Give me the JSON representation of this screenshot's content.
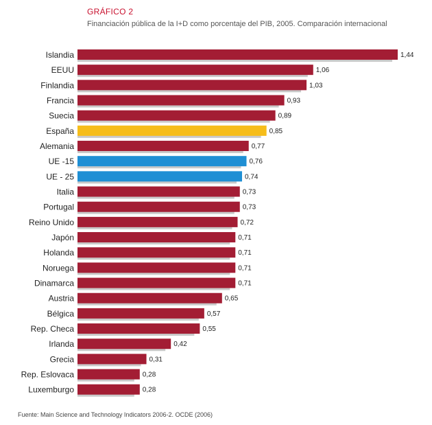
{
  "heading": {
    "label": "GRÁFICO 2",
    "title": "Financiación pública de la I+D como porcentaje del PIB, 2005. Comparación internacional"
  },
  "source": "Fuente: Main Science and Technology Indicators 2006-2. OCDE (2006)",
  "colors": {
    "default": "#a31d34",
    "spain": "#f6bd1a",
    "eu": "#1f8fd4",
    "shadow": "#c9c9c9"
  },
  "chart_data": {
    "type": "bar",
    "orientation": "horizontal",
    "title": "Financiación pública de la I+D como porcentaje del PIB, 2005. Comparación internacional",
    "categories": [
      "Islandia",
      "EEUU",
      "Finlandia",
      "Francia",
      "Suecia",
      "España",
      "Alemania",
      "UE -15",
      "UE - 25",
      "Italia",
      "Portugal",
      "Reino Unido",
      "Japón",
      "Holanda",
      "Noruega",
      "Dinamarca",
      "Austria",
      "Bélgica",
      "Rep. Checa",
      "Irlanda",
      "Grecia",
      "Rep. Eslovaca",
      "Luxemburgo"
    ],
    "values": [
      1.44,
      1.06,
      1.03,
      0.93,
      0.89,
      0.85,
      0.77,
      0.76,
      0.74,
      0.73,
      0.73,
      0.72,
      0.71,
      0.71,
      0.71,
      0.71,
      0.65,
      0.57,
      0.55,
      0.42,
      0.31,
      0.28,
      0.28
    ],
    "value_labels": [
      "1,44",
      "1,06",
      "1,03",
      "0,93",
      "0,89",
      "0,85",
      "0,77",
      "0,76",
      "0,74",
      "0,73",
      "0,73",
      "0,72",
      "0,71",
      "0,71",
      "0,71",
      "0,71",
      "0,65",
      "0,57",
      "0,55",
      "0,42",
      "0,31",
      "0,28",
      "0,28"
    ],
    "highlight": {
      "España": "spain",
      "UE -15": "eu",
      "UE - 25": "eu"
    },
    "xlim": [
      0,
      1.44
    ],
    "grid": false,
    "legend": "none"
  }
}
